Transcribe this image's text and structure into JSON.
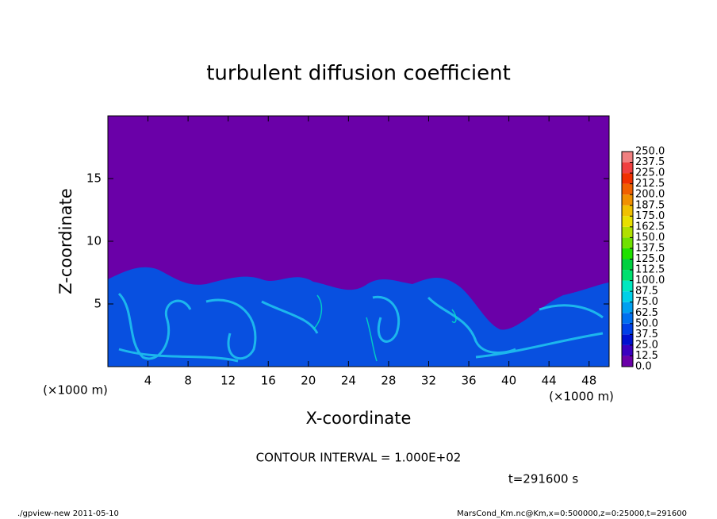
{
  "chart_data": {
    "type": "contour",
    "title": "turbulent diffusion coefficient",
    "x_label": "X-coordinate",
    "y_label": "Z-coordinate",
    "x_unit": "(×1000 m)",
    "y_unit": "(×1000 m)",
    "xlim": [
      0,
      50
    ],
    "xticks": [
      4,
      8,
      12,
      16,
      20,
      24,
      28,
      32,
      36,
      40,
      44,
      48
    ],
    "ylim": [
      0,
      20
    ],
    "yticks": [
      5,
      10,
      15
    ],
    "colorbar": {
      "ticks": [
        {
          "value": 0,
          "label": "0.0"
        },
        {
          "value": 12.5,
          "label": "12.5"
        },
        {
          "value": 25,
          "label": "25.0"
        },
        {
          "value": 37.5,
          "label": "37.5"
        },
        {
          "value": 50,
          "label": "50.0"
        },
        {
          "value": 62.5,
          "label": "62.5"
        },
        {
          "value": 75,
          "label": "75.0"
        },
        {
          "value": 87.5,
          "label": "87.5"
        },
        {
          "value": 100,
          "label": "100.0"
        },
        {
          "value": 112.5,
          "label": "112.5"
        },
        {
          "value": 125,
          "label": "125.0"
        },
        {
          "value": 137.5,
          "label": "137.5"
        },
        {
          "value": 150,
          "label": "150.0"
        },
        {
          "value": 162.5,
          "label": "162.5"
        },
        {
          "value": 175,
          "label": "175.0"
        },
        {
          "value": 187.5,
          "label": "187.5"
        },
        {
          "value": 200,
          "label": "200.0"
        },
        {
          "value": 212.5,
          "label": "212.5"
        },
        {
          "value": 225,
          "label": "225.0"
        },
        {
          "value": 237.5,
          "label": "237.5"
        },
        {
          "value": 250,
          "label": "250.0"
        }
      ],
      "colors": [
        "#6a00a8",
        "#3a00c0",
        "#0010d0",
        "#0040e8",
        "#0070f0",
        "#00a0f0",
        "#00d0e8",
        "#00e8c0",
        "#00e070",
        "#00d040",
        "#20e000",
        "#70e000",
        "#b0e000",
        "#e8e000",
        "#f0c000",
        "#f09000",
        "#f06000",
        "#f03000",
        "#f04040",
        "#f08080"
      ]
    },
    "contour_interval": "CONTOUR INTERVAL = 1.000E+02",
    "time": "t=291600 s",
    "footer_left": "./gpview-new  2011-05-10",
    "footer_right": "MarsCond_Km.nc@Km,x=0:500000,z=0:25000,t=291600"
  }
}
